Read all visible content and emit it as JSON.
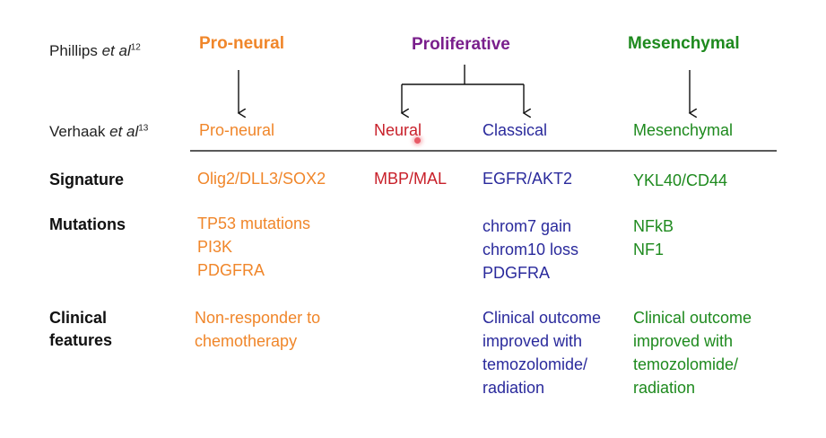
{
  "colors": {
    "pro_neural": "#f0862a",
    "proliferative": "#7a1f8c",
    "mesenchymal": "#1e8a1e",
    "neural": "#c8202a",
    "classical": "#2a2a9c",
    "text": "#111111"
  },
  "sources": {
    "phillips": {
      "name": "Phillips ",
      "etal": "et al",
      "ref": "12"
    },
    "verhaak": {
      "name": "Verhaak ",
      "etal": "et al",
      "ref": "13"
    }
  },
  "phillips_classes": {
    "pro_neural": "Pro-neural",
    "proliferative": "Proliferative",
    "mesenchymal": "Mesenchymal"
  },
  "verhaak_classes": {
    "pro_neural": "Pro-neural",
    "neural": "Neural",
    "classical": "Classical",
    "mesenchymal": "Mesenchymal"
  },
  "row_labels": {
    "signature": "Signature",
    "mutations": "Mutations",
    "clinical": "Clinical\nfeatures"
  },
  "cells": {
    "signature": {
      "pro_neural": "Olig2/DLL3/SOX2",
      "neural": "MBP/MAL",
      "classical": "EGFR/AKT2",
      "mesenchymal": "YKL40/CD44"
    },
    "mutations": {
      "pro_neural": "TP53 mutations\nPI3K\nPDGFRA",
      "classical": "chrom7 gain\nchrom10 loss\nPDGFRA",
      "mesenchymal": "NFkB\nNF1"
    },
    "clinical": {
      "pro_neural": "Non-responder to\nchemotherapy",
      "classical": "Clinical outcome\nimproved with\ntemozolomide/\nradiation",
      "mesenchymal": "Clinical outcome\nimproved with\ntemozolomide/\nradiation"
    }
  }
}
